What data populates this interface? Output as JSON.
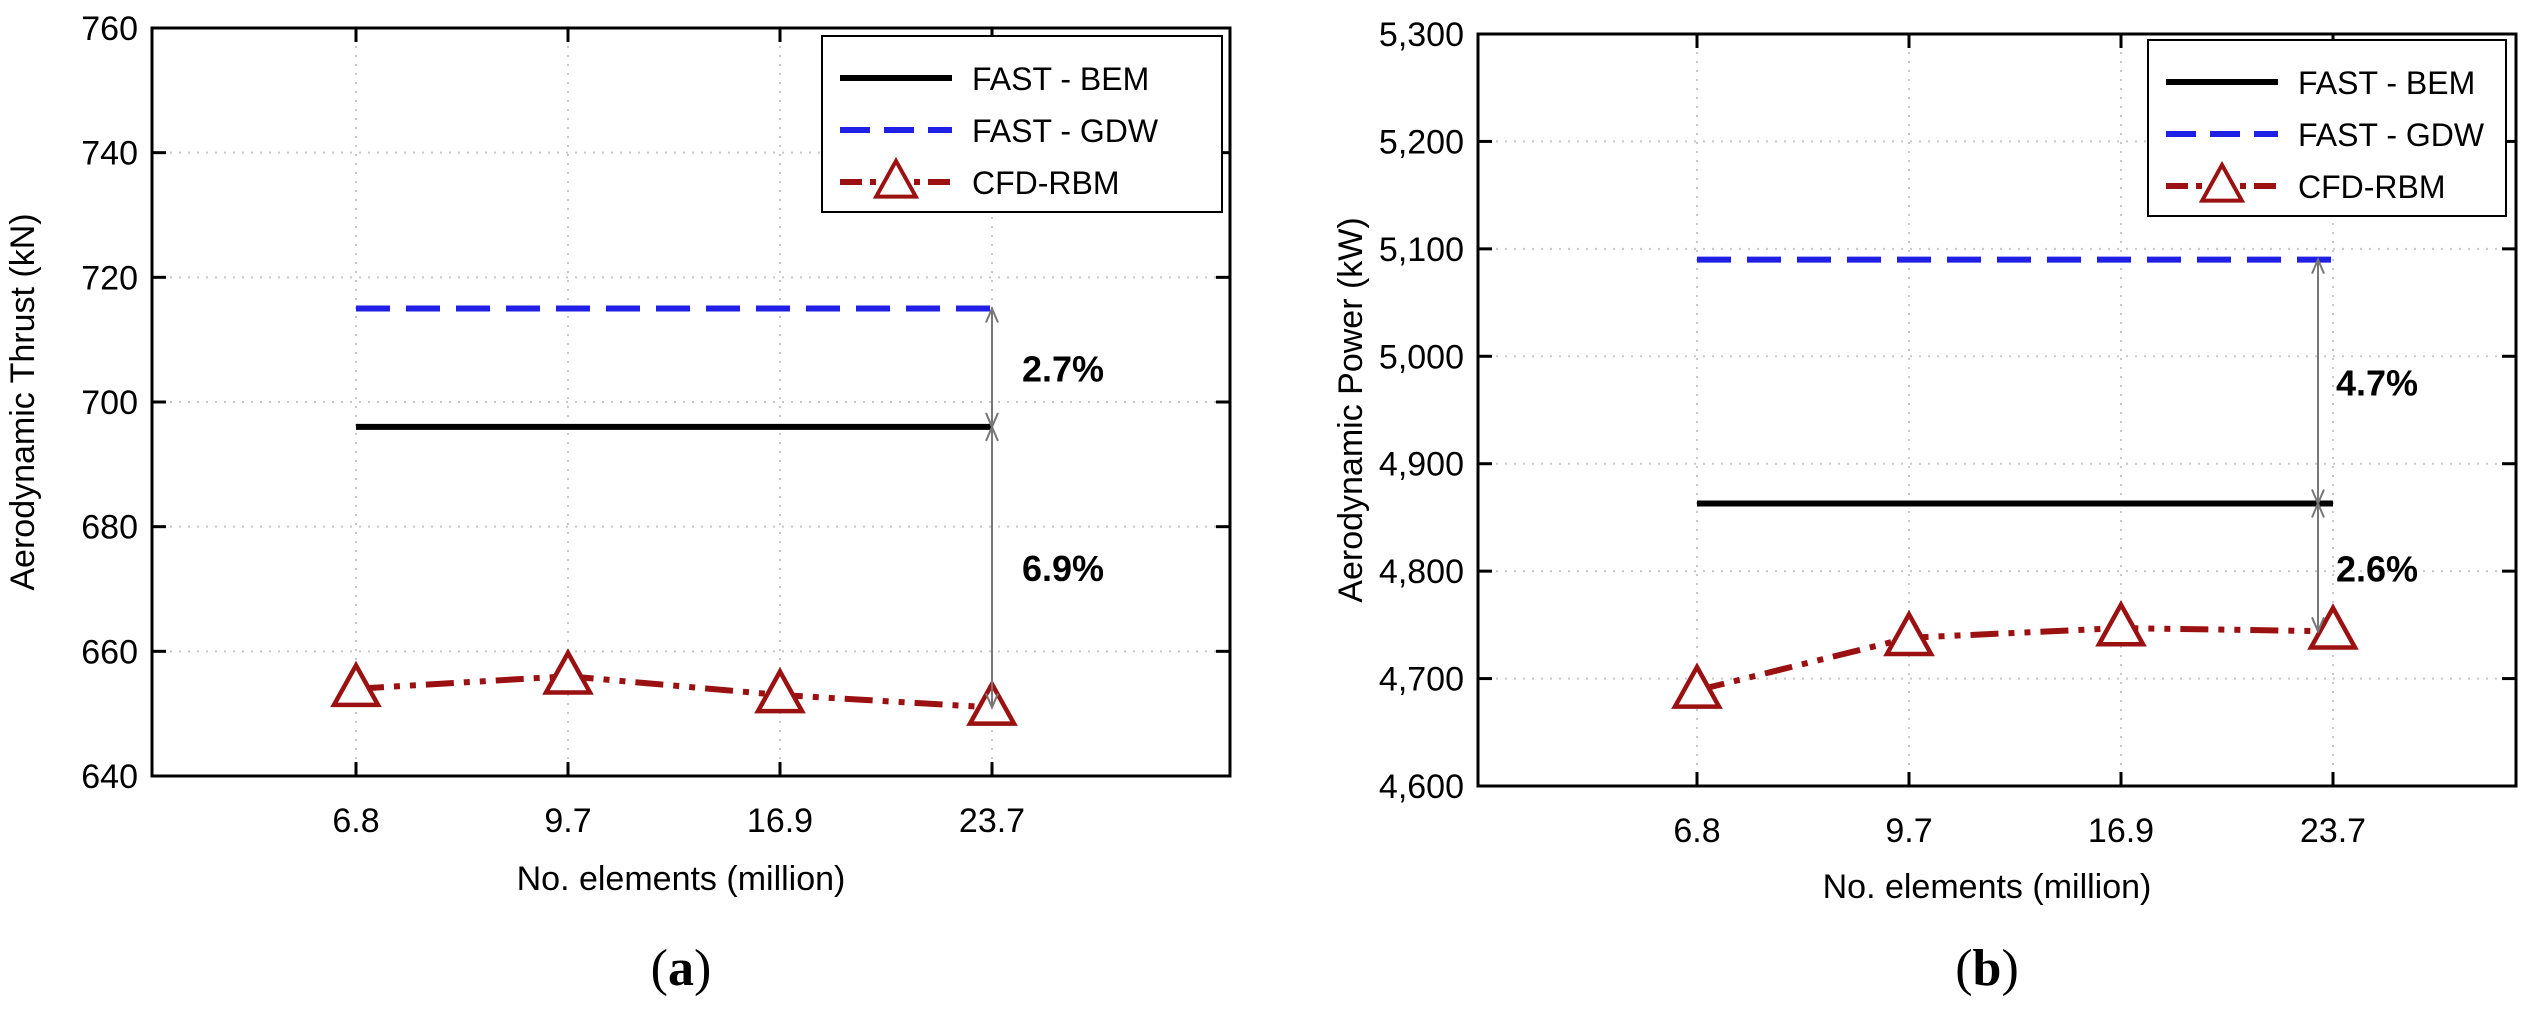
{
  "chart_data": [
    {
      "type": "line",
      "panel_label": "a",
      "xlabel": "No. elements (million)",
      "ylabel": "Aerodynamic Thrust (kN)",
      "categories": [
        "6.8",
        "9.7",
        "16.9",
        "23.7"
      ],
      "ylim": [
        640,
        760
      ],
      "yticks": [
        640,
        660,
        680,
        700,
        720,
        740,
        760
      ],
      "ytick_labels": [
        "640",
        "660",
        "680",
        "700",
        "720",
        "740",
        "760"
      ],
      "grid": true,
      "legend_position": "top-right",
      "series": [
        {
          "name": "FAST - BEM",
          "style": "solid",
          "color": "#000000",
          "values": [
            696,
            696,
            696,
            696
          ]
        },
        {
          "name": "FAST - GDW",
          "style": "dashed",
          "color": "#1f1fe6",
          "values": [
            715,
            715,
            715,
            715
          ]
        },
        {
          "name": "CFD-RBM",
          "style": "dashdot-triangle",
          "color": "#9b1010",
          "values": [
            654,
            656,
            653,
            651
          ]
        }
      ],
      "annotations": [
        {
          "text": "2.7%",
          "from": 715,
          "to": 696
        },
        {
          "text": "6.9%",
          "from": 696,
          "to": 651
        }
      ]
    },
    {
      "type": "line",
      "panel_label": "b",
      "xlabel": "No. elements (million)",
      "ylabel": "Aerodynamic Power (kW)",
      "categories": [
        "6.8",
        "9.7",
        "16.9",
        "23.7"
      ],
      "ylim": [
        4600,
        5300
      ],
      "yticks": [
        4600,
        4700,
        4800,
        4900,
        5000,
        5100,
        5200,
        5300
      ],
      "ytick_labels": [
        "4,600",
        "4,700",
        "4,800",
        "4,900",
        "5,000",
        "5,100",
        "5,200",
        "5,300"
      ],
      "grid": true,
      "legend_position": "top-right",
      "series": [
        {
          "name": "FAST - BEM",
          "style": "solid",
          "color": "#000000",
          "values": [
            4863,
            4863,
            4863,
            4863
          ]
        },
        {
          "name": "FAST - GDW",
          "style": "dashed",
          "color": "#1f1fe6",
          "values": [
            5090,
            5090,
            5090,
            5090
          ]
        },
        {
          "name": "CFD-RBM",
          "style": "dashdot-triangle",
          "color": "#9b1010",
          "values": [
            4689,
            4738,
            4747,
            4744
          ]
        }
      ],
      "annotations": [
        {
          "text": "4.7%",
          "from": 5090,
          "to": 4863
        },
        {
          "text": "2.6%",
          "from": 4863,
          "to": 4744
        }
      ]
    }
  ]
}
